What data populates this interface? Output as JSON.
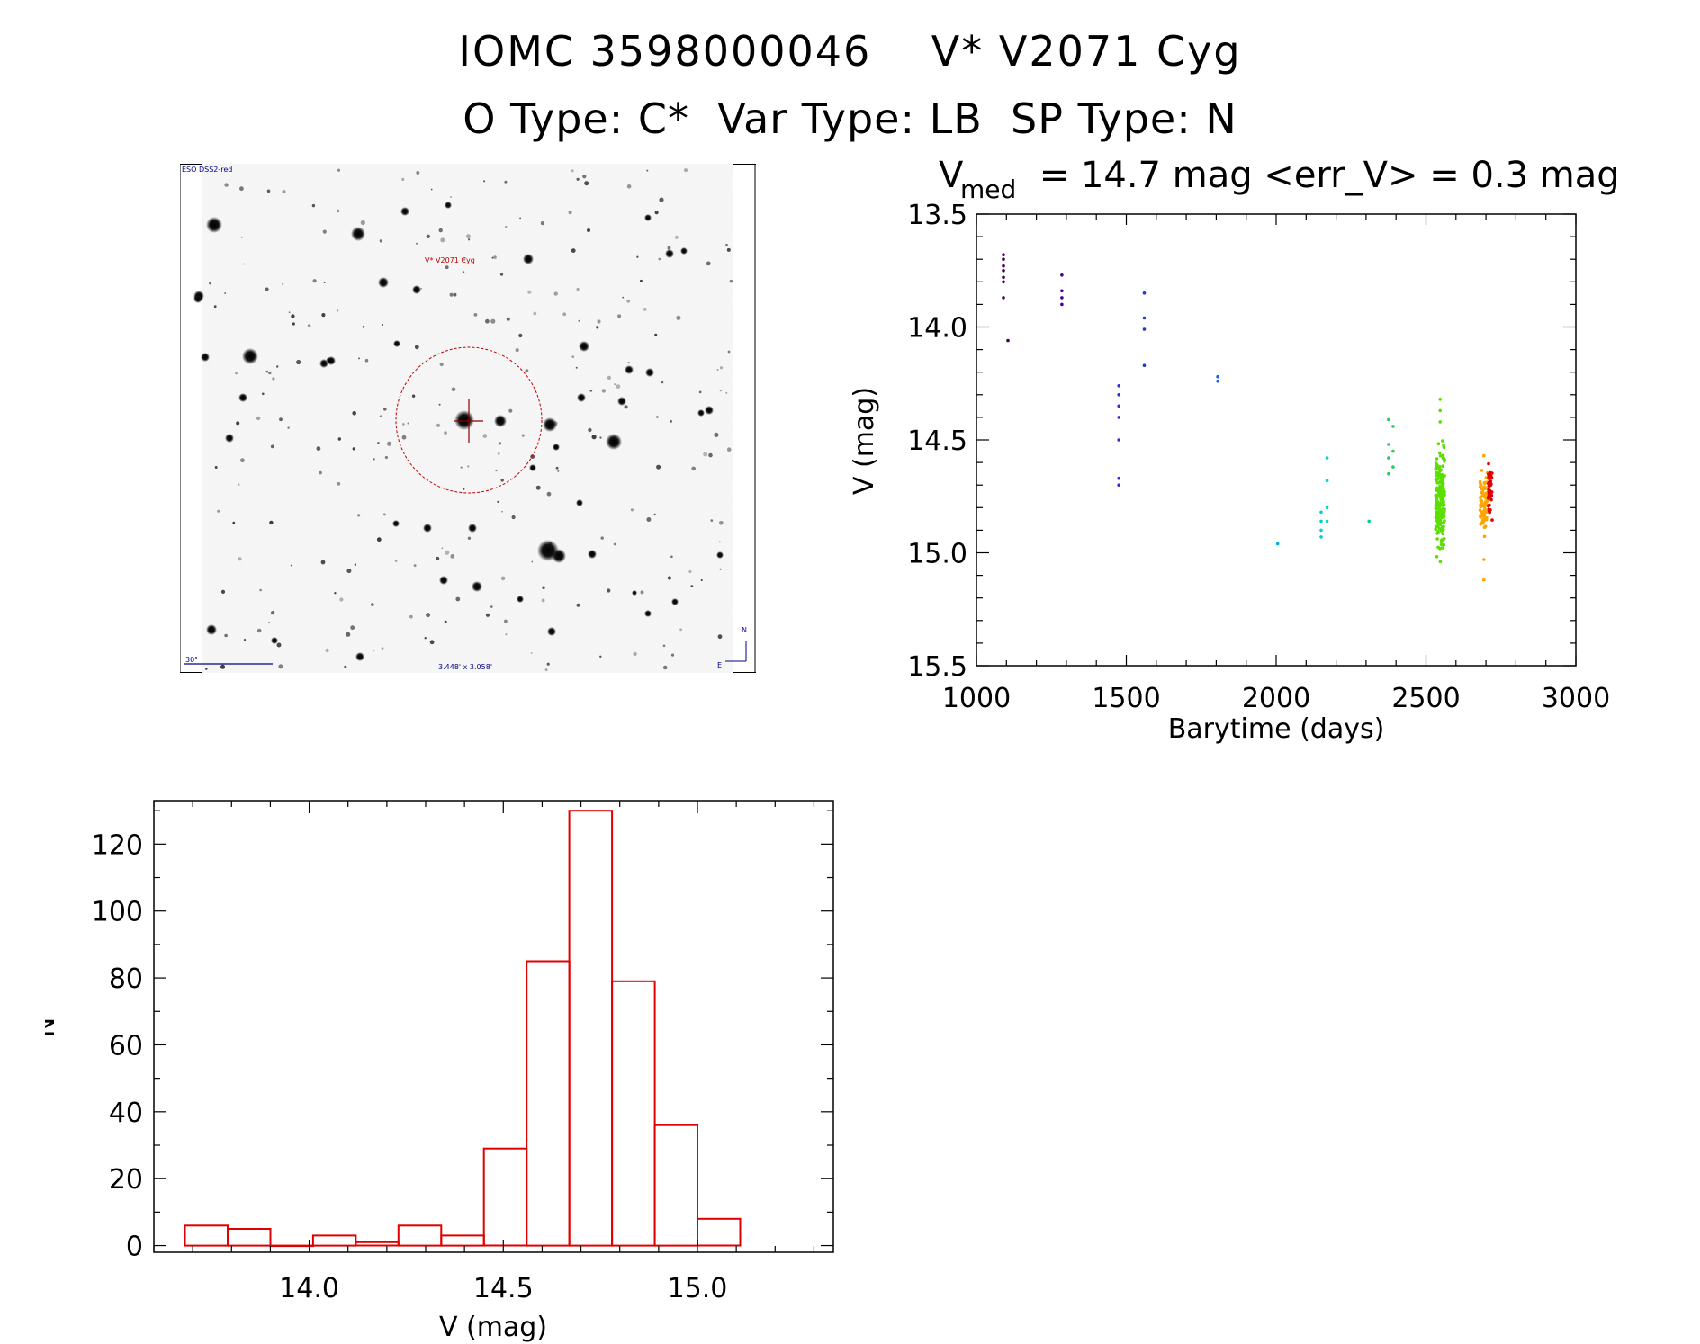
{
  "header": {
    "title_line1": "IOMC 3598000046    V* V2071 Cyg",
    "title_line2": "O Type: C*  Var Type: LB  SP Type: N"
  },
  "finder": {
    "survey_label": "ESO DSS2-red",
    "target_label": "V* V2071 Cyg",
    "scale_label": "30\"",
    "fov_label": "3.448' x 3.058'",
    "north_label": "N",
    "east_label": "E",
    "circle_color": "#c00000",
    "text_color": "#00008b"
  },
  "chart_data": [
    {
      "type": "scatter",
      "title_main": "V",
      "title_sub": "med",
      "title_rest": " = 14.7 mag <err_V> = 0.3 mag",
      "xlabel": "Barytime (days)",
      "ylabel": "V (mag)",
      "xlim": [
        1000,
        3000
      ],
      "ylim": [
        15.5,
        13.5
      ],
      "xticks": [
        "1000",
        "1500",
        "2000",
        "2500",
        "3000"
      ],
      "yticks": [
        "13.5",
        "14.0",
        "14.5",
        "15.0",
        "15.5"
      ],
      "groups": [
        {
          "x": 1090,
          "y": [
            13.68,
            13.7,
            13.73,
            13.75,
            13.78,
            13.8,
            13.87
          ],
          "color": "#4a0055"
        },
        {
          "x": 1105,
          "y": [
            14.06
          ],
          "color": "#4a0055"
        },
        {
          "x": 1285,
          "y": [
            13.77,
            13.84,
            13.87,
            13.9
          ],
          "color": "#4b0091"
        },
        {
          "x": 1475,
          "y": [
            14.26,
            14.3,
            14.35,
            14.4,
            14.5,
            14.67,
            14.7
          ],
          "color": "#3030d0"
        },
        {
          "x": 1560,
          "y": [
            13.85,
            13.96,
            14.01,
            14.17
          ],
          "color": "#1e3ad2"
        },
        {
          "x": 1805,
          "y": [
            14.22,
            14.24
          ],
          "color": "#2060e0"
        },
        {
          "x": 2005,
          "y": [
            14.96
          ],
          "color": "#00b0e0"
        },
        {
          "x": 2150,
          "y": [
            14.82,
            14.86,
            14.9,
            14.93
          ],
          "color": "#00d0d0"
        },
        {
          "x": 2170,
          "y": [
            14.58,
            14.68,
            14.8,
            14.86
          ],
          "color": "#00d8c8"
        },
        {
          "x": 2310,
          "y": [
            14.86
          ],
          "color": "#00d090"
        },
        {
          "x": 2375,
          "y": [
            14.41,
            14.52,
            14.58,
            14.65
          ],
          "color": "#20d060"
        },
        {
          "x": 2390,
          "y": [
            14.44,
            14.55,
            14.62
          ],
          "color": "#20d060"
        }
      ],
      "clusters": [
        {
          "x_min": 2532,
          "x_max": 2562,
          "y_min": 14.47,
          "y_max": 15.07,
          "n": 240,
          "color": "#5ae000",
          "outliers": [
            14.32,
            14.37,
            14.42
          ]
        },
        {
          "x_min": 2680,
          "x_max": 2706,
          "y_min": 14.6,
          "y_max": 14.98,
          "n": 85,
          "color": "#ffa500",
          "outliers": [
            14.57,
            15.03,
            15.12
          ]
        },
        {
          "x_min": 2706,
          "x_max": 2722,
          "y_min": 14.55,
          "y_max": 14.88,
          "n": 45,
          "color": "#e00000",
          "outliers": []
        }
      ]
    },
    {
      "type": "bar",
      "xlabel": "V (mag)",
      "ylabel": "N",
      "xlim": [
        13.6,
        15.35
      ],
      "ylim": [
        -2,
        133
      ],
      "xticks": [
        "14.0",
        "14.5",
        "15.0"
      ],
      "yticks": [
        "0",
        "20",
        "40",
        "60",
        "80",
        "100",
        "120"
      ],
      "bin_width": 0.11,
      "bin_start": 13.68,
      "values": [
        6,
        5,
        0,
        3,
        1,
        6,
        3,
        29,
        85,
        130,
        79,
        36,
        8
      ],
      "color": "#e00000"
    }
  ]
}
